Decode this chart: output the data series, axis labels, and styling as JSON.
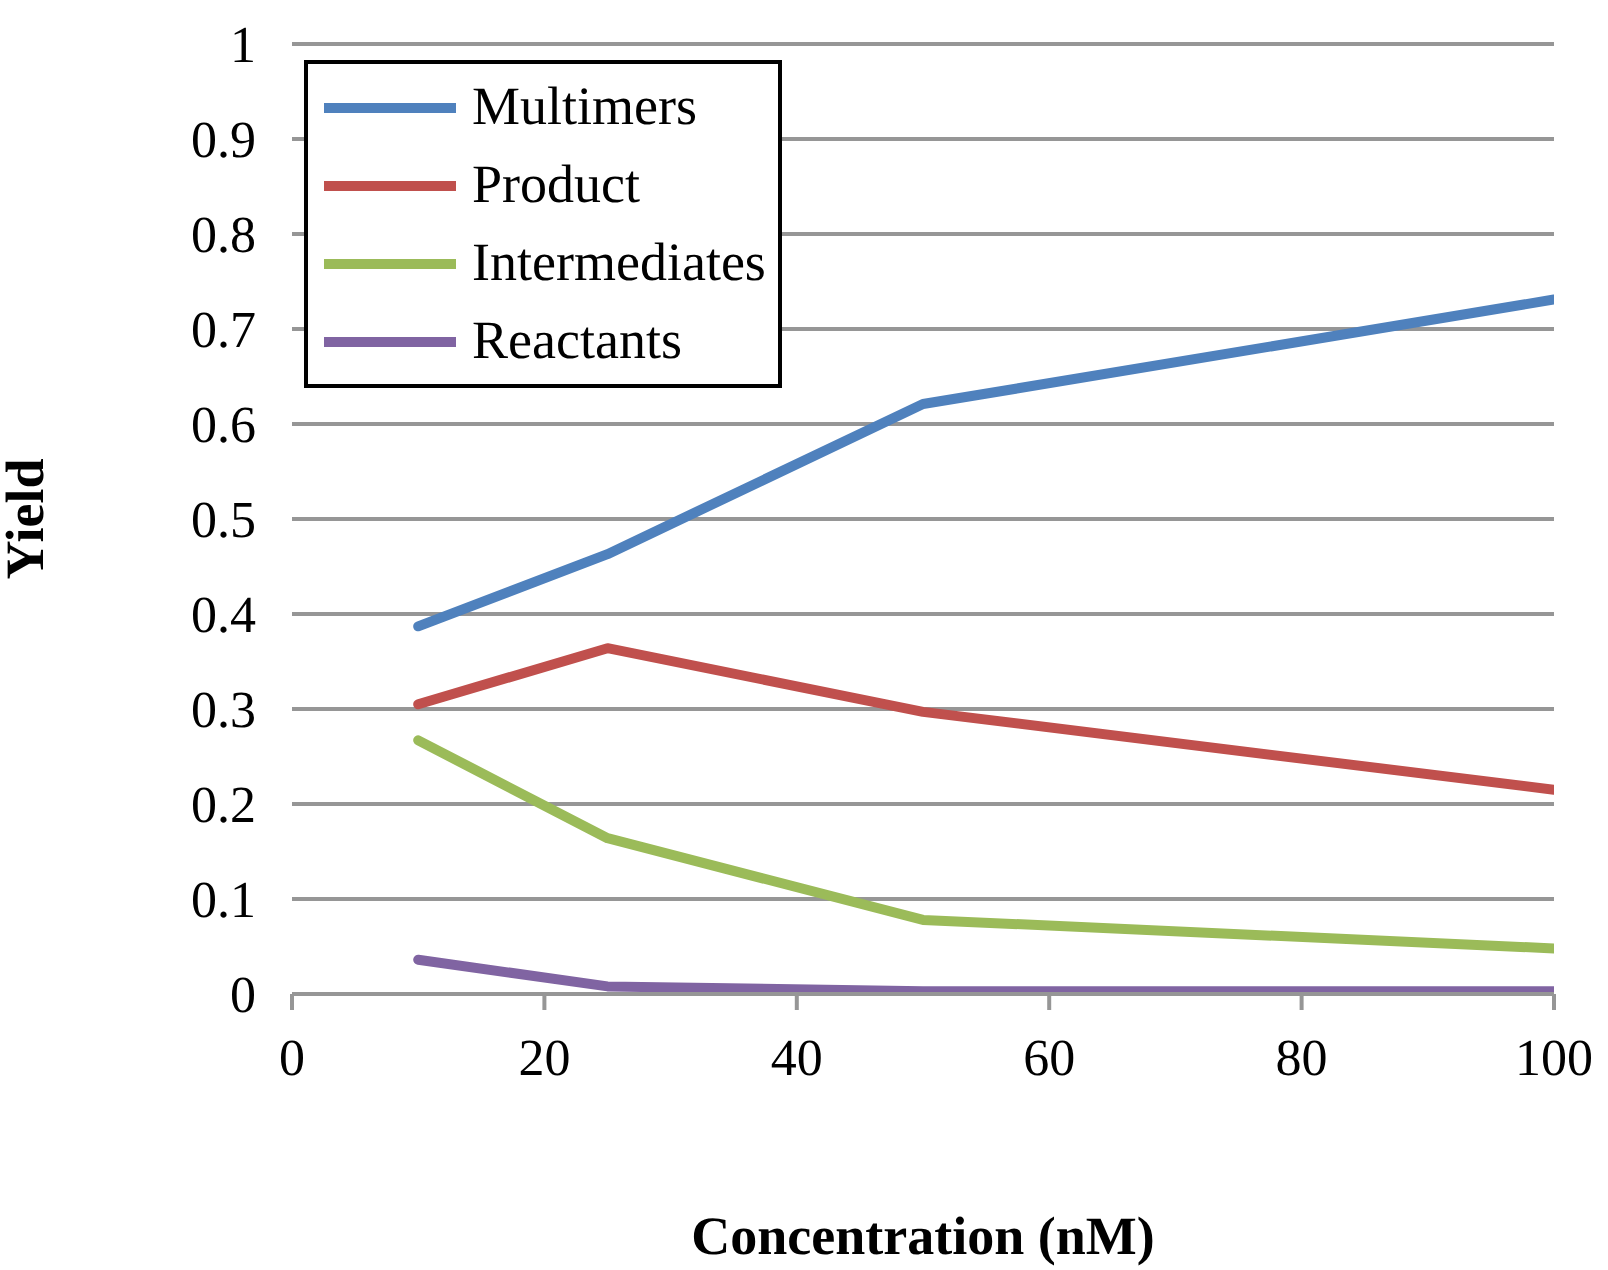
{
  "chart_data": {
    "type": "line",
    "xlabel": "Concentration (nM)",
    "ylabel": "Yield",
    "x": [
      10,
      25,
      50,
      100
    ],
    "series": [
      {
        "name": "Multimers",
        "color": "#4f81bd",
        "values": [
          0.387,
          0.463,
          0.621,
          0.731
        ]
      },
      {
        "name": "Product",
        "color": "#c0504d",
        "values": [
          0.305,
          0.364,
          0.297,
          0.215
        ]
      },
      {
        "name": "Intermediates",
        "color": "#9bbb59",
        "values": [
          0.267,
          0.164,
          0.078,
          0.048
        ]
      },
      {
        "name": "Reactants",
        "color": "#8064a2",
        "values": [
          0.036,
          0.008,
          0.003,
          0.003
        ]
      }
    ],
    "xlim": [
      0,
      100
    ],
    "xticks": [
      0,
      20,
      40,
      60,
      80,
      100
    ],
    "ylim": [
      0,
      1
    ],
    "yticks": [
      0,
      0.1,
      0.2,
      0.3,
      0.4,
      0.5,
      0.6,
      0.7,
      0.8,
      0.9,
      1
    ],
    "grid": "y",
    "legend": "top left",
    "marker": "none",
    "line_style": "solid"
  }
}
